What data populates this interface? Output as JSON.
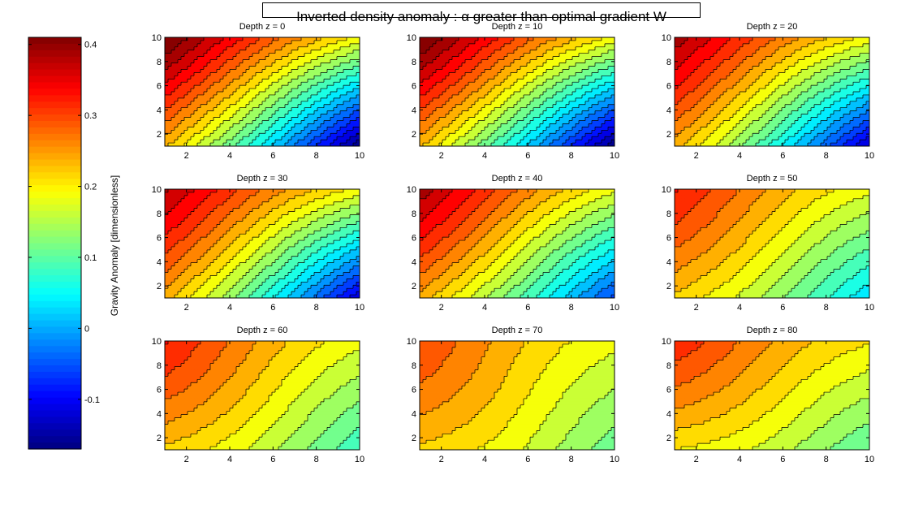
{
  "figure": {
    "title": "Inverted density anomaly : α greater than optimal   gradient W"
  },
  "colorbar": {
    "label": "Gravity Anomaly [dimensionless]",
    "colormap": "jet",
    "range": [
      -0.17,
      0.41
    ],
    "ticks": [
      -0.1,
      0,
      0.1,
      0.2,
      0.3,
      0.4
    ],
    "tick_labels": [
      "-0.1",
      "0",
      "0.1",
      "0.2",
      "0.3",
      "0.4"
    ]
  },
  "chart_data": {
    "type": "contour",
    "xlim": [
      1,
      10
    ],
    "ylim": [
      1,
      10
    ],
    "xticks": [
      2,
      4,
      6,
      8,
      10
    ],
    "yticks": [
      2,
      4,
      6,
      8,
      10
    ],
    "xtick_labels": [
      "2",
      "4",
      "6",
      "8",
      "10"
    ],
    "ytick_labels": [
      "2",
      "4",
      "6",
      "8",
      "10"
    ],
    "contour_levels": [
      -0.15,
      -0.125,
      -0.1,
      -0.075,
      -0.05,
      -0.025,
      0,
      0.025,
      0.05,
      0.075,
      0.1,
      0.125,
      0.15,
      0.175,
      0.2,
      0.225,
      0.25,
      0.275,
      0.3,
      0.325,
      0.35,
      0.375,
      0.4
    ],
    "panels": [
      {
        "title": "Depth z = 0",
        "depth": 0,
        "corner_values": {
          "top_left": 0.41,
          "top_right": 0.19,
          "bottom_left": 0.23,
          "bottom_right": -0.17
        }
      },
      {
        "title": "Depth z = 10",
        "depth": 10,
        "corner_values": {
          "top_left": 0.41,
          "top_right": 0.19,
          "bottom_left": 0.23,
          "bottom_right": -0.17
        }
      },
      {
        "title": "Depth z = 20",
        "depth": 20,
        "corner_values": {
          "top_left": 0.37,
          "top_right": 0.19,
          "bottom_left": 0.24,
          "bottom_right": -0.13
        }
      },
      {
        "title": "Depth z = 30",
        "depth": 30,
        "corner_values": {
          "top_left": 0.36,
          "top_right": 0.19,
          "bottom_left": 0.24,
          "bottom_right": -0.12
        }
      },
      {
        "title": "Depth z = 40",
        "depth": 40,
        "corner_values": {
          "top_left": 0.37,
          "top_right": 0.18,
          "bottom_left": 0.24,
          "bottom_right": -0.06
        }
      },
      {
        "title": "Depth z = 50",
        "depth": 50,
        "corner_values": {
          "top_left": 0.31,
          "top_right": 0.18,
          "bottom_left": 0.22,
          "bottom_right": 0.03
        }
      },
      {
        "title": "Depth z = 60",
        "depth": 60,
        "corner_values": {
          "top_left": 0.31,
          "top_right": 0.18,
          "bottom_left": 0.22,
          "bottom_right": 0.08
        }
      },
      {
        "title": "Depth z = 70",
        "depth": 70,
        "corner_values": {
          "top_left": 0.28,
          "top_right": 0.18,
          "bottom_left": 0.22,
          "bottom_right": 0.11
        }
      },
      {
        "title": "Depth z = 80",
        "depth": 80,
        "corner_values": {
          "top_left": 0.3,
          "top_right": 0.2,
          "bottom_left": 0.2,
          "bottom_right": 0.1
        }
      }
    ]
  }
}
